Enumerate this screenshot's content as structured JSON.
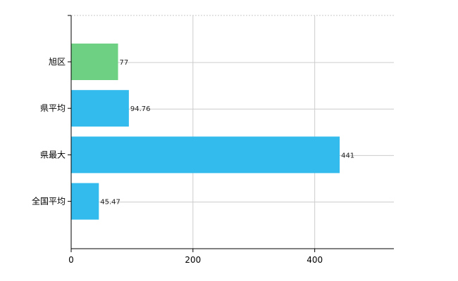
{
  "chart_data": {
    "type": "bar",
    "orientation": "horizontal",
    "title": "",
    "xlabel": "",
    "ylabel": "",
    "categories": [
      "旭区",
      "県平均",
      "県最大",
      "全国平均"
    ],
    "values": [
      77,
      94.76,
      441,
      45.47
    ],
    "value_labels": [
      "77",
      "94.76",
      "441",
      "45.47"
    ],
    "bar_colors": [
      "#6dd083",
      "#33bbee",
      "#33bbee",
      "#33bbee"
    ],
    "xlim": [
      0,
      530
    ],
    "x_ticks": [
      0,
      200,
      400
    ],
    "x_tick_labels": [
      "0",
      "200",
      "400"
    ],
    "grid": true,
    "legend": "none"
  }
}
